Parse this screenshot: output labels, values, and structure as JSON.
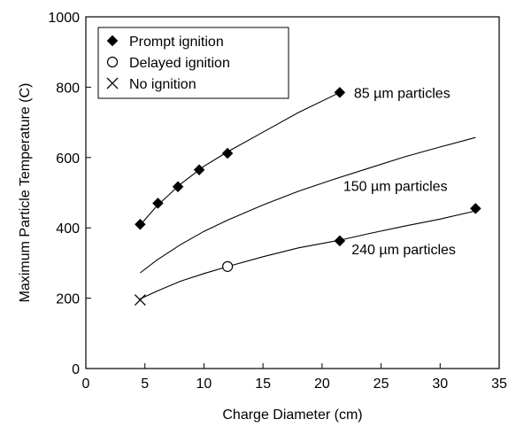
{
  "chart_data": {
    "type": "scatter",
    "title": "",
    "xlabel": "Charge Diameter (cm)",
    "ylabel": "Maximum Particle Temperature (C)",
    "xlim": [
      0,
      35
    ],
    "ylim": [
      0,
      1000
    ],
    "x_ticks": [
      0,
      5,
      10,
      15,
      20,
      25,
      30,
      35
    ],
    "y_ticks": [
      0,
      200,
      400,
      600,
      800,
      1000
    ],
    "grid": false,
    "legend_position": "top-left",
    "legend": [
      {
        "label": "Prompt ignition",
        "marker": "filled-diamond"
      },
      {
        "label": "Delayed ignition",
        "marker": "open-circle"
      },
      {
        "label": "No ignition",
        "marker": "x-cross"
      }
    ],
    "series": [
      {
        "name": "Prompt ignition",
        "marker": "filled-diamond",
        "points": [
          {
            "x": 4.6,
            "y": 410
          },
          {
            "x": 6.1,
            "y": 470
          },
          {
            "x": 7.8,
            "y": 517
          },
          {
            "x": 9.6,
            "y": 565
          },
          {
            "x": 12.0,
            "y": 612
          },
          {
            "x": 21.5,
            "y": 785
          },
          {
            "x": 21.5,
            "y": 363
          },
          {
            "x": 33.0,
            "y": 455
          }
        ]
      },
      {
        "name": "Delayed ignition",
        "marker": "open-circle",
        "points": [
          {
            "x": 12.0,
            "y": 290
          }
        ]
      },
      {
        "name": "No ignition",
        "marker": "x-cross",
        "points": [
          {
            "x": 4.6,
            "y": 195
          }
        ]
      }
    ],
    "curves": [
      {
        "label": "85 µm particles",
        "points": [
          [
            4.6,
            408
          ],
          [
            6,
            462
          ],
          [
            8,
            524
          ],
          [
            10,
            575
          ],
          [
            12,
            616
          ],
          [
            15,
            672
          ],
          [
            18,
            728
          ],
          [
            21.5,
            785
          ]
        ]
      },
      {
        "label": "150 µm particles",
        "points": [
          [
            4.6,
            272
          ],
          [
            6,
            308
          ],
          [
            8,
            352
          ],
          [
            10,
            390
          ],
          [
            12,
            422
          ],
          [
            15,
            465
          ],
          [
            18,
            504
          ],
          [
            21,
            538
          ],
          [
            24,
            570
          ],
          [
            27,
            602
          ],
          [
            30,
            630
          ],
          [
            33,
            657
          ]
        ]
      },
      {
        "label": "240 µm particles",
        "points": [
          [
            4.6,
            198
          ],
          [
            6,
            220
          ],
          [
            8,
            248
          ],
          [
            10,
            270
          ],
          [
            12,
            290
          ],
          [
            15,
            318
          ],
          [
            18,
            343
          ],
          [
            21.5,
            365
          ],
          [
            24,
            384
          ],
          [
            27,
            405
          ],
          [
            30,
            425
          ],
          [
            33,
            448
          ]
        ]
      }
    ],
    "annotations": [
      {
        "text": "85 µm particles",
        "x": 22.7,
        "y": 785
      },
      {
        "text": "150 µm particles",
        "x": 21.8,
        "y": 520
      },
      {
        "text": "240 µm particles",
        "x": 22.5,
        "y": 340
      }
    ]
  }
}
